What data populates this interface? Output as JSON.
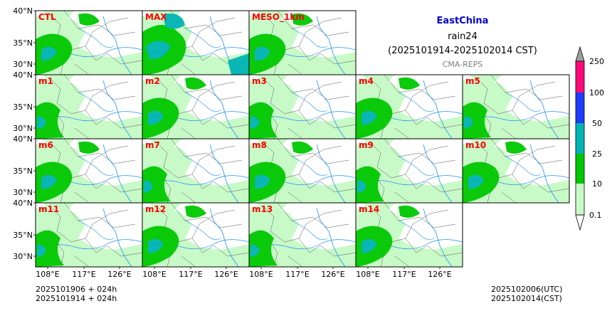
{
  "header": {
    "region": "EastChina",
    "variable": "rain24",
    "period": "(2025101914-2025102014 CST)",
    "model": "CMA-REPS"
  },
  "panels": {
    "row1": [
      "CTL",
      "MAX",
      "MESO_1km"
    ],
    "row2": [
      "m1",
      "m2",
      "m3",
      "m4",
      "m5"
    ],
    "row3": [
      "m6",
      "m7",
      "m8",
      "m9",
      "m10"
    ],
    "row4": [
      "m11",
      "m12",
      "m13",
      "m14"
    ]
  },
  "axes": {
    "lat_ticks": [
      "40°N",
      "35°N",
      "30°N"
    ],
    "lon_ticks": [
      "108°E",
      "117°E",
      "126°E"
    ]
  },
  "colorbar": {
    "levels": [
      "0.1",
      "10",
      "25",
      "50",
      "100",
      "250"
    ],
    "colors": [
      "#c8fac8",
      "#00c800",
      "#00b4b4",
      "#1e3cff",
      "#ff0a78",
      "#a0a0a0"
    ]
  },
  "footer": {
    "left_line1": "2025101906  +  024h",
    "left_line2": "2025101914  +  024h",
    "right_line1": "2025102006(UTC)",
    "right_line2": "2025102014(CST)"
  }
}
